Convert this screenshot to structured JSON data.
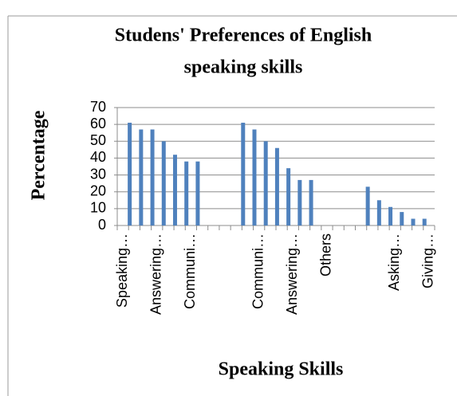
{
  "chart_data": {
    "type": "bar",
    "title": "Studens' Preferences of English speaking skills",
    "xlabel": "Speaking Skills",
    "ylabel": "Percentage",
    "categories": [
      "Speaking…",
      null,
      null,
      "Answering…",
      null,
      null,
      "Communi…",
      null,
      null,
      null,
      null,
      null,
      "Communi…",
      null,
      null,
      "Answering…",
      null,
      null,
      "Others",
      null,
      null,
      null,
      null,
      null,
      "Asking…",
      null,
      null,
      "Giving…"
    ],
    "values": [
      61,
      57,
      57,
      50,
      42,
      38,
      38,
      null,
      null,
      null,
      61,
      57,
      50,
      46,
      34,
      27,
      27,
      null,
      null,
      null,
      null,
      23,
      15,
      11,
      8,
      4,
      4,
      null
    ],
    "color": "#4f81bd",
    "ylim": [
      0,
      70
    ],
    "yticks": [
      0,
      10,
      20,
      30,
      40,
      50,
      60,
      70
    ],
    "grid": true
  }
}
